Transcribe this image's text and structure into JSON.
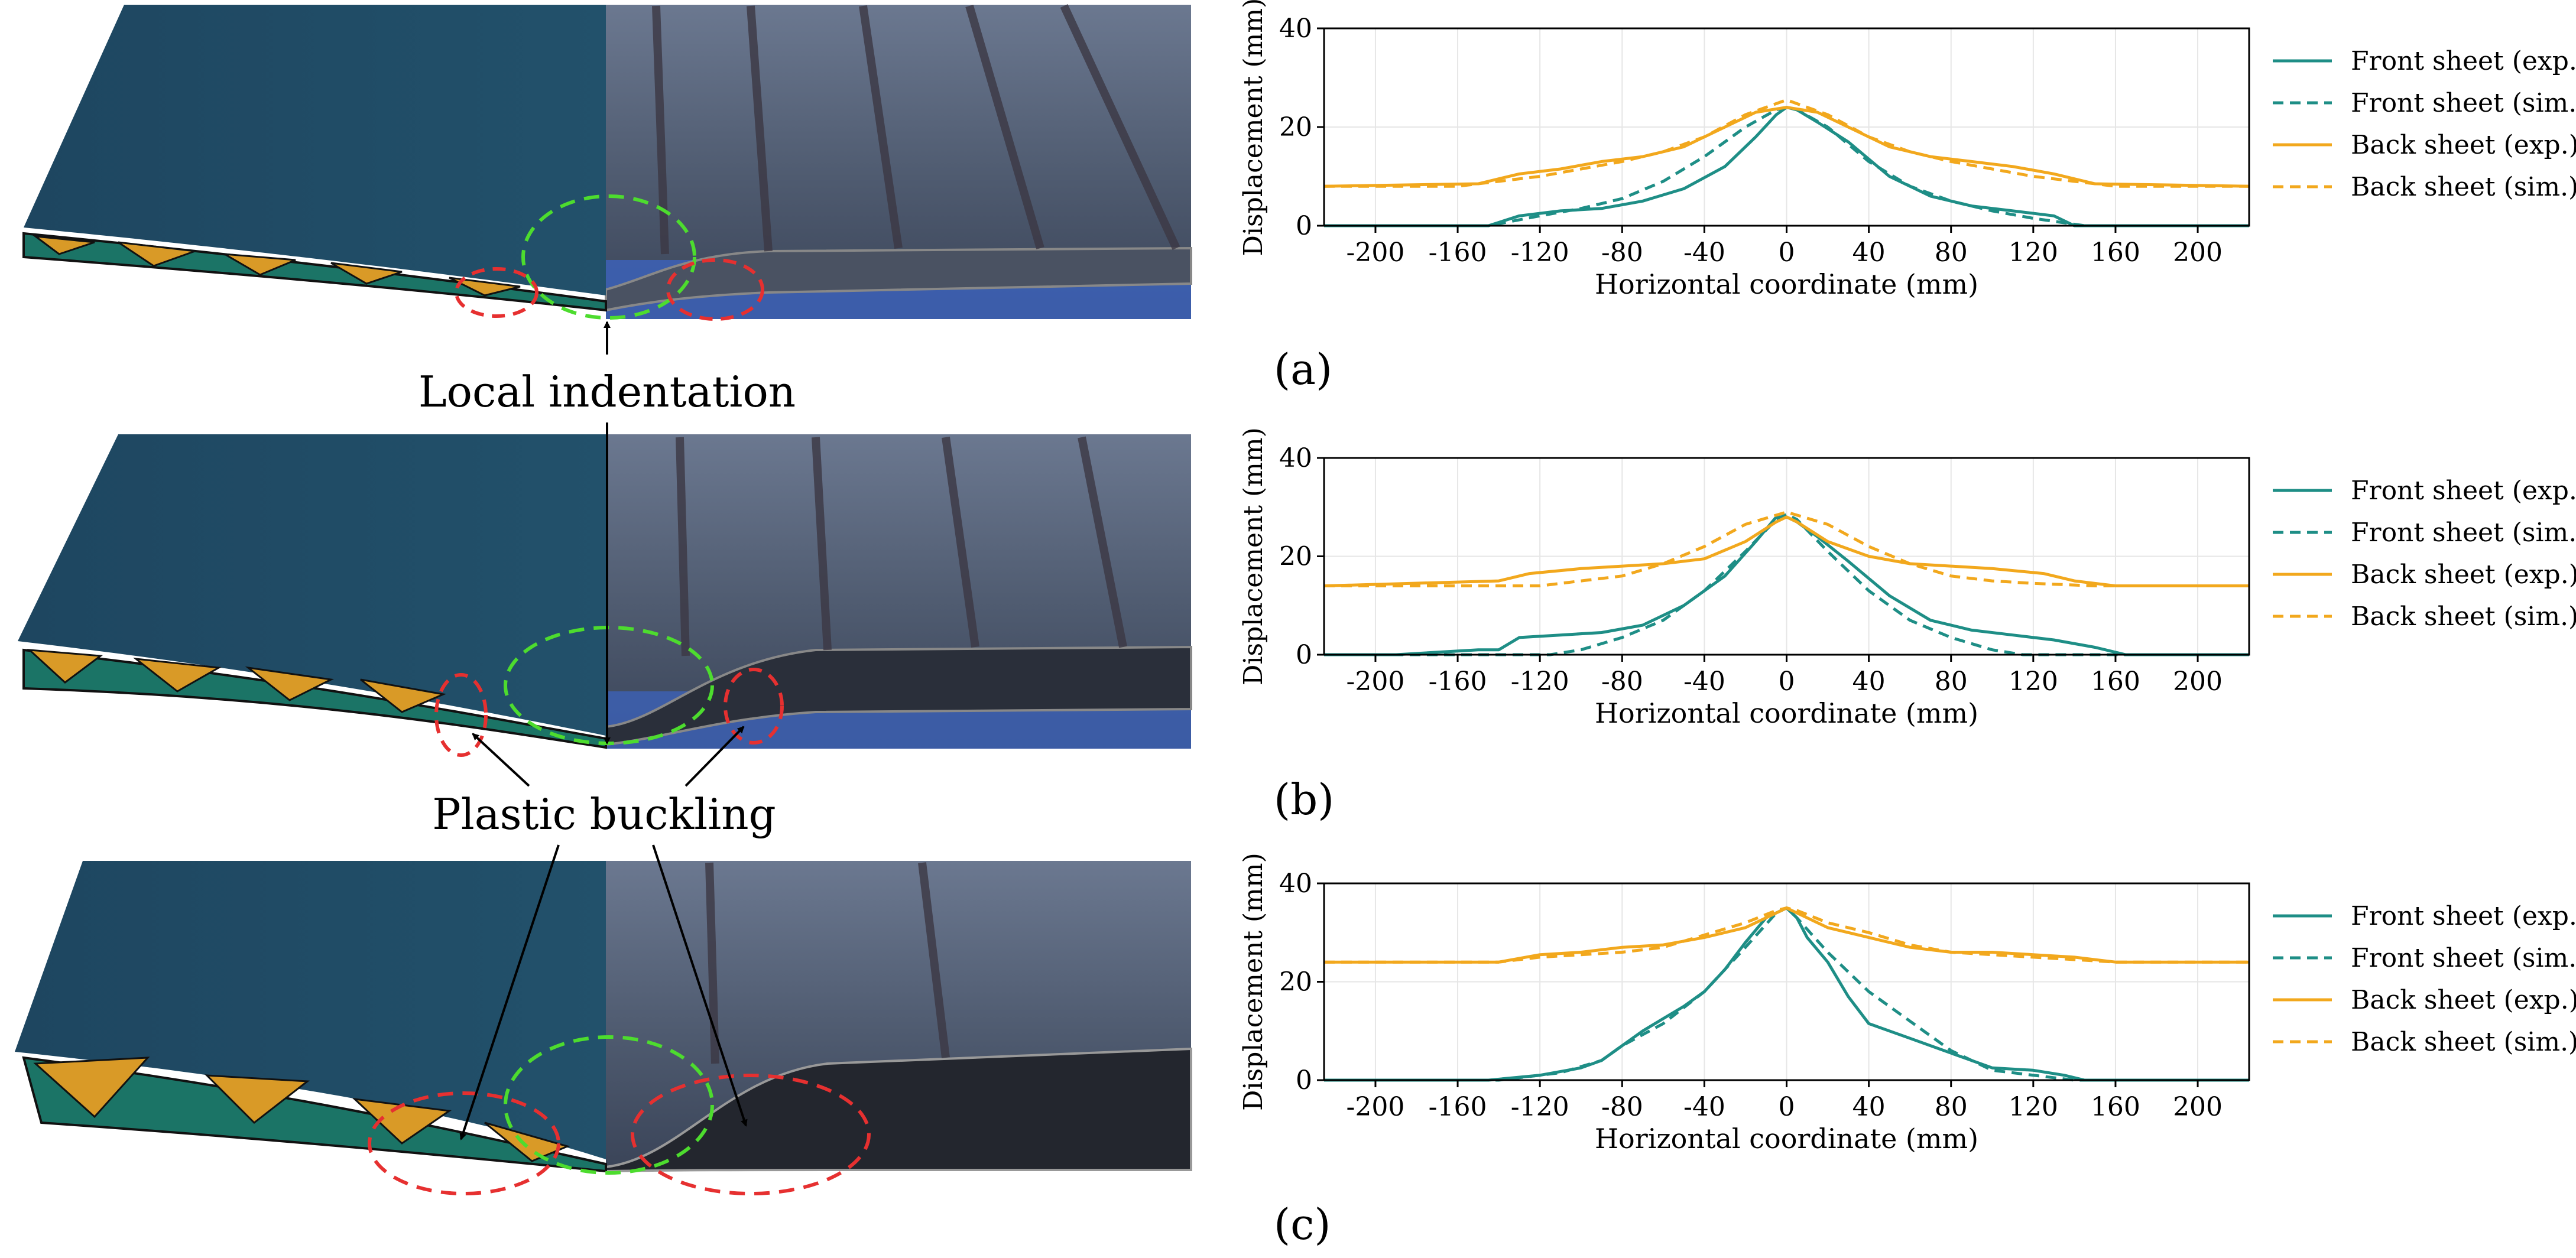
{
  "annotations": {
    "local_indentation": "Local indentation",
    "plastic_buckling": "Plastic buckling"
  },
  "panels": [
    {
      "label": "(a)",
      "caption": "(a)"
    },
    {
      "label": "(b)",
      "caption": "(b)"
    },
    {
      "label": "(c)",
      "caption": "(c)"
    }
  ],
  "colors": {
    "front": "#1e8e86",
    "back": "#f2a81d",
    "panel_dark": "#1f4a63",
    "core_teal": "#1b7466",
    "core_orange": "#d99a27",
    "photo_gray": "#59667a",
    "photo_blue": "#3a5fb0",
    "highlight_green": "#4ddc2e",
    "highlight_red": "#e63030"
  },
  "chart_data": [
    {
      "type": "line",
      "panel": "(a)",
      "xlabel": "Horizontal coordinate (mm)",
      "ylabel": "Displacement (mm)",
      "xlim": [
        -225,
        225
      ],
      "ylim": [
        0,
        40
      ],
      "xticks": [
        -200,
        -160,
        -120,
        -80,
        -40,
        0,
        40,
        80,
        120,
        160,
        200
      ],
      "yticks": [
        0,
        20,
        40
      ],
      "grid": true,
      "legend": "right",
      "series": [
        {
          "name": "Front sheet (exp.)",
          "style": "solid",
          "color": "front",
          "x": [
            -225,
            -145,
            -130,
            -110,
            -90,
            -70,
            -50,
            -30,
            -15,
            -5,
            0,
            5,
            15,
            30,
            50,
            70,
            90,
            110,
            130,
            140,
            225
          ],
          "y": [
            0,
            0,
            2,
            3,
            3.5,
            5,
            7.5,
            12,
            18,
            22.5,
            24,
            23.5,
            21,
            17,
            10,
            6,
            4,
            3,
            2,
            0,
            0
          ]
        },
        {
          "name": "Front sheet (sim.)",
          "style": "dashed",
          "color": "front",
          "x": [
            -225,
            -145,
            -120,
            -100,
            -80,
            -60,
            -40,
            -20,
            -5,
            0,
            5,
            20,
            40,
            60,
            80,
            100,
            120,
            145,
            225
          ],
          "y": [
            0,
            0,
            2,
            3.5,
            5.5,
            9,
            14,
            20,
            23.5,
            24,
            23.5,
            20,
            13,
            8,
            5,
            3,
            1.5,
            0,
            0
          ]
        },
        {
          "name": "Back sheet (exp.)",
          "style": "solid",
          "color": "back",
          "x": [
            -225,
            -150,
            -130,
            -110,
            -90,
            -70,
            -50,
            -30,
            -15,
            0,
            15,
            30,
            50,
            70,
            90,
            110,
            130,
            150,
            225
          ],
          "y": [
            8,
            8.5,
            10.5,
            11.5,
            13,
            14,
            16,
            20,
            23,
            24,
            23,
            20,
            16,
            14,
            13,
            12,
            10.5,
            8.5,
            8
          ]
        },
        {
          "name": "Back sheet (sim.)",
          "style": "dashed",
          "color": "back",
          "x": [
            -225,
            -160,
            -140,
            -120,
            -100,
            -80,
            -60,
            -40,
            -20,
            0,
            20,
            40,
            60,
            80,
            100,
            120,
            140,
            160,
            225
          ],
          "y": [
            8,
            8,
            9,
            10,
            11.5,
            13,
            15,
            18,
            22.5,
            25.5,
            22.5,
            18,
            15,
            13,
            11.5,
            10,
            9,
            8,
            8
          ]
        }
      ]
    },
    {
      "type": "line",
      "panel": "(b)",
      "xlabel": "Horizontal coordinate (mm)",
      "ylabel": "Displacement (mm)",
      "xlim": [
        -225,
        225
      ],
      "ylim": [
        0,
        40
      ],
      "xticks": [
        -200,
        -160,
        -120,
        -80,
        -40,
        0,
        40,
        80,
        120,
        160,
        200
      ],
      "yticks": [
        0,
        20,
        40
      ],
      "grid": true,
      "legend": "right",
      "series": [
        {
          "name": "Front sheet (exp.)",
          "style": "solid",
          "color": "front",
          "x": [
            -225,
            -190,
            -150,
            -140,
            -130,
            -110,
            -90,
            -70,
            -50,
            -30,
            -15,
            -5,
            0,
            5,
            15,
            30,
            50,
            70,
            90,
            110,
            130,
            150,
            165,
            225
          ],
          "y": [
            0,
            0,
            1,
            1,
            3.5,
            4,
            4.5,
            6,
            10,
            16,
            23,
            28,
            28,
            27,
            24,
            19,
            12,
            7,
            5,
            4,
            3,
            1.5,
            0,
            0
          ]
        },
        {
          "name": "Front sheet (sim.)",
          "style": "dashed",
          "color": "front",
          "x": [
            -225,
            -115,
            -100,
            -80,
            -60,
            -40,
            -20,
            -5,
            0,
            5,
            20,
            40,
            60,
            80,
            100,
            115,
            225
          ],
          "y": [
            0,
            0,
            1,
            3.5,
            7,
            13,
            21,
            27.5,
            28.5,
            27.5,
            21,
            13,
            7,
            3.5,
            1,
            0,
            0
          ]
        },
        {
          "name": "Back sheet (exp.)",
          "style": "solid",
          "color": "back",
          "x": [
            -225,
            -140,
            -125,
            -100,
            -80,
            -60,
            -40,
            -20,
            -5,
            0,
            5,
            20,
            40,
            60,
            80,
            100,
            125,
            140,
            160,
            225
          ],
          "y": [
            14,
            15,
            16.5,
            17.5,
            18,
            18.5,
            19.5,
            23,
            27,
            28,
            27,
            23,
            20,
            18.5,
            18,
            17.5,
            16.5,
            15,
            14,
            14
          ]
        },
        {
          "name": "Back sheet (sim.)",
          "style": "dashed",
          "color": "back",
          "x": [
            -225,
            -120,
            -100,
            -80,
            -60,
            -40,
            -20,
            0,
            20,
            40,
            60,
            80,
            100,
            120,
            150,
            225
          ],
          "y": [
            14,
            14,
            15,
            16,
            18.5,
            22,
            26.5,
            29,
            26.5,
            22,
            18.5,
            16,
            15,
            14.5,
            14,
            14
          ]
        }
      ]
    },
    {
      "type": "line",
      "panel": "(c)",
      "xlabel": "Horizontal coordinate (mm)",
      "ylabel": "Displacement (mm)",
      "xlim": [
        -225,
        225
      ],
      "ylim": [
        0,
        40
      ],
      "xticks": [
        -200,
        -160,
        -120,
        -80,
        -40,
        0,
        40,
        80,
        120,
        160,
        200
      ],
      "yticks": [
        0,
        20,
        40
      ],
      "grid": true,
      "legend": "right",
      "series": [
        {
          "name": "Front sheet (exp.)",
          "style": "solid",
          "color": "front",
          "x": [
            -225,
            -145,
            -120,
            -100,
            -90,
            -80,
            -70,
            -60,
            -50,
            -40,
            -30,
            -20,
            -10,
            0,
            5,
            10,
            20,
            30,
            40,
            60,
            80,
            100,
            120,
            135,
            145,
            225
          ],
          "y": [
            0,
            0,
            1,
            2.5,
            4,
            7,
            10,
            12.5,
            15,
            18,
            22.5,
            28,
            33,
            35,
            33,
            29,
            24,
            17,
            11.5,
            8.5,
            5.5,
            2.5,
            2,
            1,
            0,
            0
          ]
        },
        {
          "name": "Front sheet (sim.)",
          "style": "dashed",
          "color": "front",
          "x": [
            -225,
            -140,
            -110,
            -90,
            -80,
            -60,
            -40,
            -20,
            -5,
            0,
            5,
            20,
            40,
            60,
            80,
            100,
            120,
            140,
            225
          ],
          "y": [
            0,
            0,
            1.5,
            4,
            7,
            11.5,
            18,
            27,
            34,
            35,
            33,
            26,
            18,
            12,
            6,
            2,
            1,
            0,
            0
          ]
        },
        {
          "name": "Back sheet (exp.)",
          "style": "solid",
          "color": "back",
          "x": [
            -225,
            -140,
            -120,
            -100,
            -80,
            -60,
            -40,
            -20,
            -5,
            0,
            5,
            20,
            40,
            60,
            80,
            100,
            120,
            140,
            160,
            225
          ],
          "y": [
            24,
            24,
            25.5,
            26,
            27,
            27.5,
            29,
            31,
            34,
            35,
            34,
            31,
            29,
            27,
            26,
            26,
            25.5,
            25,
            24,
            24
          ]
        },
        {
          "name": "Back sheet (sim.)",
          "style": "dashed",
          "color": "back",
          "x": [
            -225,
            -140,
            -120,
            -100,
            -80,
            -60,
            -40,
            -20,
            -5,
            0,
            5,
            20,
            40,
            60,
            80,
            100,
            120,
            140,
            160,
            225
          ],
          "y": [
            24,
            24,
            25,
            25.5,
            26,
            27,
            29.5,
            32,
            34.5,
            35,
            34.5,
            32,
            30,
            27.5,
            26,
            25.5,
            25,
            24.5,
            24,
            24
          ]
        }
      ]
    }
  ]
}
